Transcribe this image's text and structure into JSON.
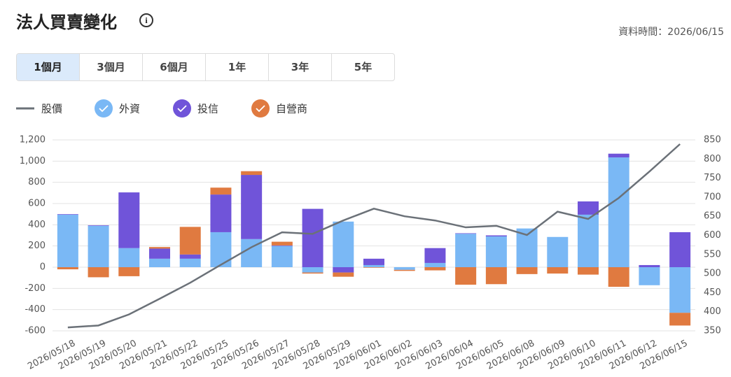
{
  "header": {
    "title": "法人買賣變化",
    "updated": "資料時間：2026/06/15"
  },
  "tabs": [
    "1個月",
    "3個月",
    "6個月",
    "1年",
    "3年",
    "5年"
  ],
  "chart_data": {
    "type": "bar",
    "stacked": true,
    "categories": [
      "2026/05/18",
      "2026/05/19",
      "2026/05/20",
      "2026/05/21",
      "2026/05/22",
      "2026/05/25",
      "2026/05/26",
      "2026/05/27",
      "2026/05/28",
      "2026/05/29",
      "2026/06/01",
      "2026/06/02",
      "2026/06/03",
      "2026/06/04",
      "2026/06/05",
      "2026/06/08",
      "2026/06/09",
      "2026/06/10",
      "2026/06/11",
      "2026/06/12",
      "2026/06/15"
    ],
    "series": [
      {
        "name": "股價",
        "type": "line",
        "axis": "y2",
        "color": "#6b7178",
        "values": [
          359,
          364,
          393,
          434,
          476,
          523,
          569,
          608,
          604,
          639,
          670,
          650,
          639,
          621,
          625,
          601,
          662,
          643,
          698,
          767,
          839
        ]
      },
      {
        "name": "外資",
        "color": "#7ab8f5",
        "values": [
          495,
          390,
          180,
          80,
          80,
          330,
          265,
          200,
          -50,
          430,
          20,
          -25,
          40,
          315,
          290,
          365,
          285,
          495,
          1035,
          -170,
          -430
        ]
      },
      {
        "name": "投信",
        "color": "#7054d9",
        "values": [
          5,
          5,
          525,
          95,
          40,
          355,
          605,
          5,
          550,
          -50,
          60,
          0,
          140,
          5,
          10,
          0,
          0,
          125,
          35,
          20,
          330
        ]
      },
      {
        "name": "自營商",
        "color": "#e07a40",
        "values": [
          -20,
          -95,
          -85,
          15,
          260,
          65,
          35,
          35,
          -10,
          -40,
          -5,
          -10,
          -30,
          -165,
          -160,
          -65,
          -60,
          -70,
          -185,
          0,
          -120
        ]
      }
    ],
    "ylim": [
      -600,
      1200
    ],
    "yticks": [
      -600,
      -400,
      -200,
      0,
      200,
      400,
      600,
      800,
      {
        "value": 1000,
        "label": "1,000"
      },
      {
        "value": 1200,
        "label": "1,200"
      }
    ],
    "y2lim": [
      350,
      850
    ],
    "y2ticks": [
      350,
      400,
      450,
      500,
      550,
      600,
      650,
      700,
      750,
      800,
      850
    ],
    "grid": true
  }
}
